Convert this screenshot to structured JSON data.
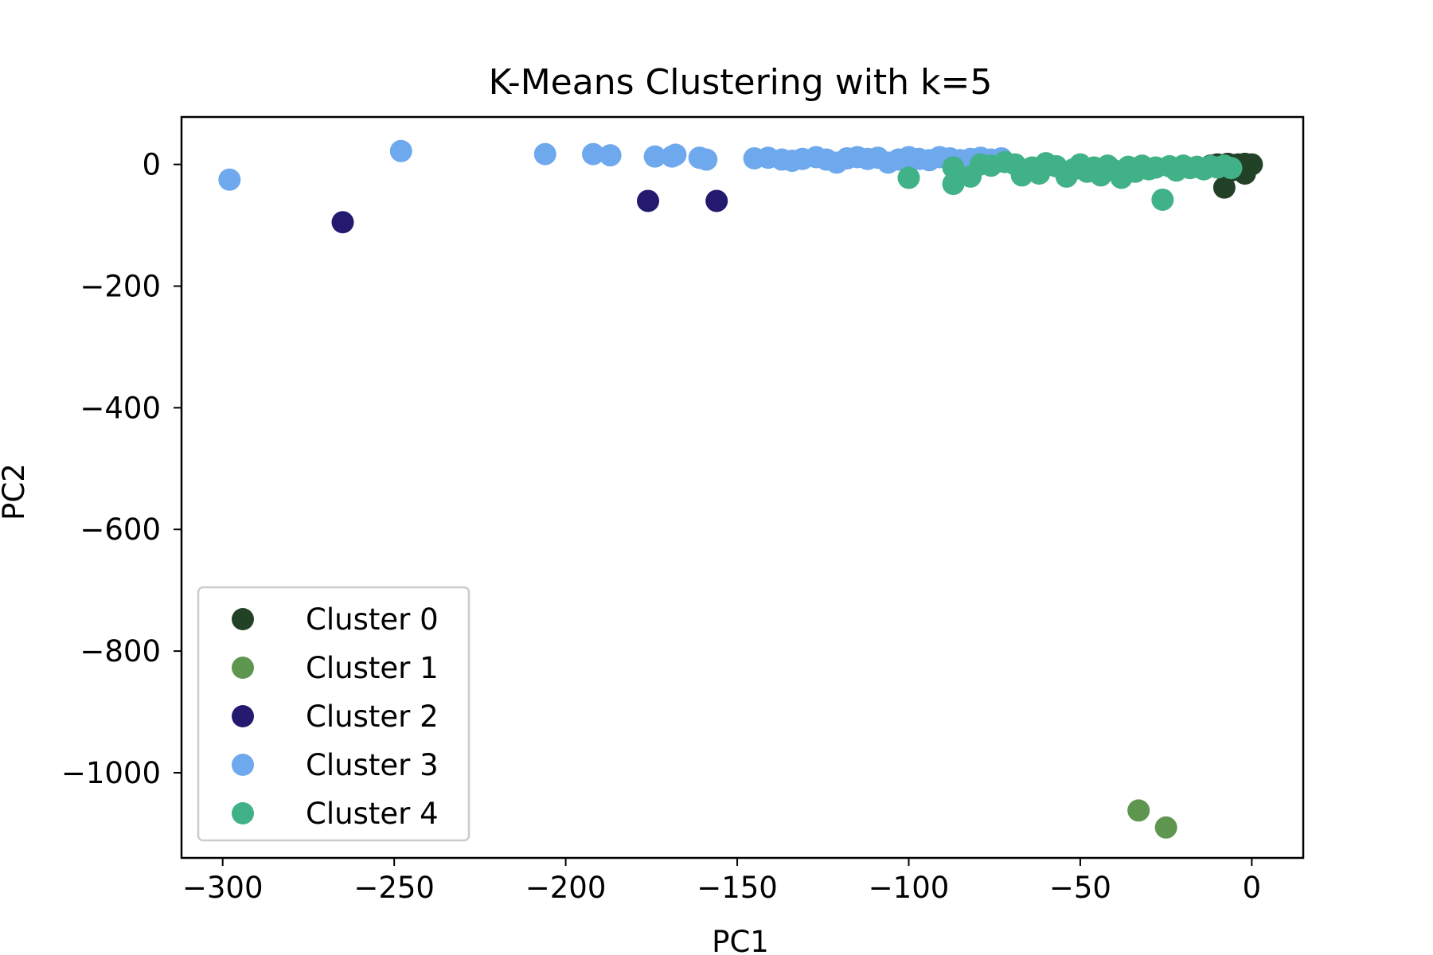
{
  "chart_data": {
    "type": "scatter",
    "title": "K-Means Clustering with k=5",
    "xlabel": "PC1",
    "ylabel": "PC2",
    "xlim": [
      -312,
      15
    ],
    "ylim": [
      -1140,
      78
    ],
    "xticks": [
      -300,
      -250,
      -200,
      -150,
      -100,
      -50,
      0
    ],
    "yticks": [
      0,
      -200,
      -400,
      -600,
      -800,
      -1000
    ],
    "xtick_labels": [
      "−300",
      "−250",
      "−200",
      "−150",
      "−100",
      "−50",
      "0"
    ],
    "ytick_labels": [
      "0",
      "−200",
      "−400",
      "−600",
      "−800",
      "−1000"
    ],
    "grid": false,
    "legend_position": "lower-left",
    "series": [
      {
        "name": "Cluster 0",
        "color": "#224227",
        "points": [
          [
            0,
            0
          ],
          [
            -1,
            -2
          ],
          [
            -2,
            1
          ],
          [
            -3,
            -3
          ],
          [
            -4,
            0
          ],
          [
            -5,
            -1
          ],
          [
            -6,
            -4
          ],
          [
            -7,
            1
          ],
          [
            -8,
            -2
          ],
          [
            -9,
            -5
          ],
          [
            -10,
            0
          ],
          [
            -11,
            -3
          ],
          [
            -4,
            -6
          ],
          [
            -8,
            -38
          ],
          [
            -2,
            -15
          ],
          [
            -6,
            -10
          ],
          [
            -12,
            -2
          ],
          [
            -3,
            -8
          ]
        ]
      },
      {
        "name": "Cluster 1",
        "color": "#5e9650",
        "points": [
          [
            -33,
            -1062
          ],
          [
            -25,
            -1090
          ]
        ]
      },
      {
        "name": "Cluster 2",
        "color": "#231a70",
        "points": [
          [
            -265,
            -95
          ],
          [
            -176,
            -60
          ],
          [
            -156,
            -60
          ]
        ]
      },
      {
        "name": "Cluster 3",
        "color": "#6ea8ed",
        "points": [
          [
            -298,
            -25
          ],
          [
            -248,
            22
          ],
          [
            -206,
            17
          ],
          [
            -192,
            17
          ],
          [
            -187,
            15
          ],
          [
            -174,
            13
          ],
          [
            -169,
            13
          ],
          [
            -168,
            16
          ],
          [
            -161,
            11
          ],
          [
            -159,
            8
          ],
          [
            -145,
            10
          ],
          [
            -141,
            11
          ],
          [
            -137,
            8
          ],
          [
            -134,
            6
          ],
          [
            -131,
            9
          ],
          [
            -127,
            12
          ],
          [
            -124,
            8
          ],
          [
            -121,
            3
          ],
          [
            -118,
            10
          ],
          [
            -115,
            12
          ],
          [
            -112,
            9
          ],
          [
            -109,
            11
          ],
          [
            -106,
            3
          ],
          [
            -103,
            8
          ],
          [
            -100,
            12
          ],
          [
            -97,
            9
          ],
          [
            -94,
            7
          ],
          [
            -91,
            12
          ],
          [
            -88,
            10
          ],
          [
            -85,
            7
          ],
          [
            -82,
            9
          ],
          [
            -79,
            11
          ],
          [
            -76,
            8
          ],
          [
            -73,
            10
          ]
        ]
      },
      {
        "name": "Cluster 4",
        "color": "#41b187",
        "points": [
          [
            -100,
            -22
          ],
          [
            -87,
            -5
          ],
          [
            -87,
            -32
          ],
          [
            -82,
            -20
          ],
          [
            -79,
            0
          ],
          [
            -76,
            -2
          ],
          [
            -72,
            4
          ],
          [
            -69,
            0
          ],
          [
            -67,
            -18
          ],
          [
            -64,
            -5
          ],
          [
            -62,
            -15
          ],
          [
            -60,
            2
          ],
          [
            -57,
            -3
          ],
          [
            -54,
            -20
          ],
          [
            -52,
            -8
          ],
          [
            -50,
            0
          ],
          [
            -48,
            -12
          ],
          [
            -46,
            -5
          ],
          [
            -44,
            -18
          ],
          [
            -42,
            -2
          ],
          [
            -40,
            -10
          ],
          [
            -38,
            -22
          ],
          [
            -36,
            -4
          ],
          [
            -34,
            -12
          ],
          [
            -32,
            -2
          ],
          [
            -30,
            -8
          ],
          [
            -28,
            -5
          ],
          [
            -26,
            -58
          ],
          [
            -24,
            -3
          ],
          [
            -22,
            -10
          ],
          [
            -20,
            -2
          ],
          [
            -18,
            -6
          ],
          [
            -16,
            -4
          ],
          [
            -14,
            -8
          ],
          [
            -12,
            -3
          ],
          [
            -10,
            -5
          ],
          [
            -8,
            -2
          ],
          [
            -6,
            -6
          ]
        ]
      }
    ]
  }
}
